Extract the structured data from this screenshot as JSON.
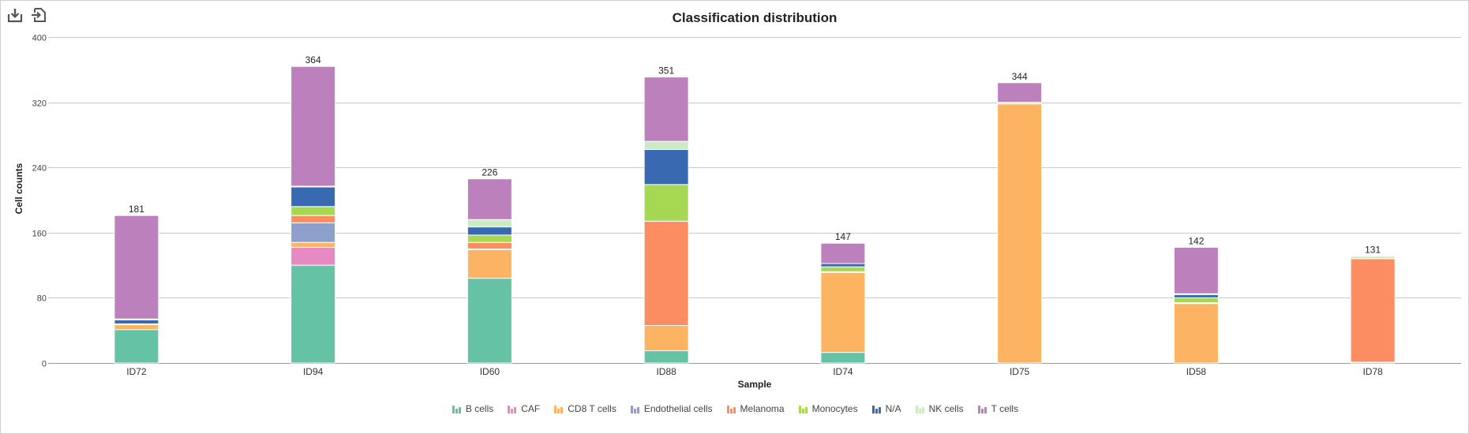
{
  "toolbar": {
    "download_icon": "download-icon",
    "export_icon": "export-icon"
  },
  "chart_data": {
    "type": "bar",
    "stacked": true,
    "title": "Classification distribution",
    "xlabel": "Sample",
    "ylabel": "Cell counts",
    "ylim": [
      0,
      400
    ],
    "yticks": [
      0,
      80,
      160,
      240,
      320,
      400
    ],
    "grid": true,
    "legend_position": "bottom",
    "categories": [
      "ID72",
      "ID94",
      "ID60",
      "ID88",
      "ID74",
      "ID75",
      "ID58",
      "ID78"
    ],
    "totals": [
      181,
      364,
      226,
      351,
      147,
      344,
      142,
      131
    ],
    "series": [
      {
        "name": "B cells",
        "color": "#66c2a5",
        "values": [
          41,
          120,
          104,
          15,
          13,
          0,
          0,
          0
        ]
      },
      {
        "name": "CAF",
        "color": "#e78ac3",
        "values": [
          0,
          22,
          0,
          0,
          0,
          0,
          0,
          0
        ]
      },
      {
        "name": "CD8 T cells",
        "color": "#fdb462",
        "values": [
          6,
          6,
          35,
          31,
          98,
          318,
          73,
          1
        ]
      },
      {
        "name": "Endothelial cells",
        "color": "#8da0cb",
        "values": [
          1,
          24,
          1,
          0,
          1,
          0,
          1,
          0
        ]
      },
      {
        "name": "Melanoma",
        "color": "#fc8d62",
        "values": [
          0,
          9,
          8,
          128,
          0,
          0,
          0,
          127
        ]
      },
      {
        "name": "Monocytes",
        "color": "#a6d854",
        "values": [
          0,
          11,
          9,
          45,
          6,
          0,
          6,
          0
        ]
      },
      {
        "name": "N/A",
        "color": "#3969b1",
        "values": [
          5,
          24,
          10,
          43,
          4,
          0,
          4,
          0
        ]
      },
      {
        "name": "NK cells",
        "color": "#ccebc5",
        "values": [
          1,
          1,
          9,
          10,
          0,
          2,
          1,
          3
        ]
      },
      {
        "name": "T cells",
        "color": "#bc80bd",
        "values": [
          127,
          147,
          50,
          79,
          25,
          24,
          57,
          0
        ]
      }
    ]
  }
}
